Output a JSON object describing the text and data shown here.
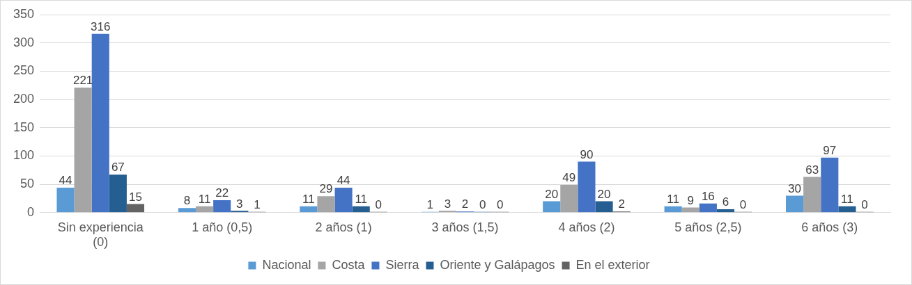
{
  "chart_data": {
    "type": "bar",
    "categories": [
      "Sin experiencia (0)",
      "1 año (0,5)",
      "2 años (1)",
      "3 años (1,5)",
      "4 años (2)",
      "5 años (2,5)",
      "6 años (3)"
    ],
    "series": [
      {
        "name": "Nacional",
        "color": "#5b9bd5",
        "values": [
          44,
          8,
          11,
          1,
          20,
          11,
          30
        ]
      },
      {
        "name": "Costa",
        "color": "#a5a5a5",
        "values": [
          221,
          11,
          29,
          3,
          49,
          9,
          63
        ]
      },
      {
        "name": "Sierra",
        "color": "#4472c4",
        "values": [
          316,
          22,
          44,
          2,
          90,
          16,
          97
        ]
      },
      {
        "name": "Oriente y Galápagos",
        "color": "#255e91",
        "values": [
          67,
          3,
          11,
          0,
          20,
          6,
          11
        ]
      },
      {
        "name": "En el exterior",
        "color": "#636363",
        "values": [
          15,
          1,
          0,
          0,
          2,
          0,
          0
        ]
      }
    ],
    "ylim": [
      0,
      350
    ],
    "yticks": [
      0,
      50,
      100,
      150,
      200,
      250,
      300,
      350
    ],
    "grid": "y",
    "legend": "bottom",
    "data_labels": true
  }
}
